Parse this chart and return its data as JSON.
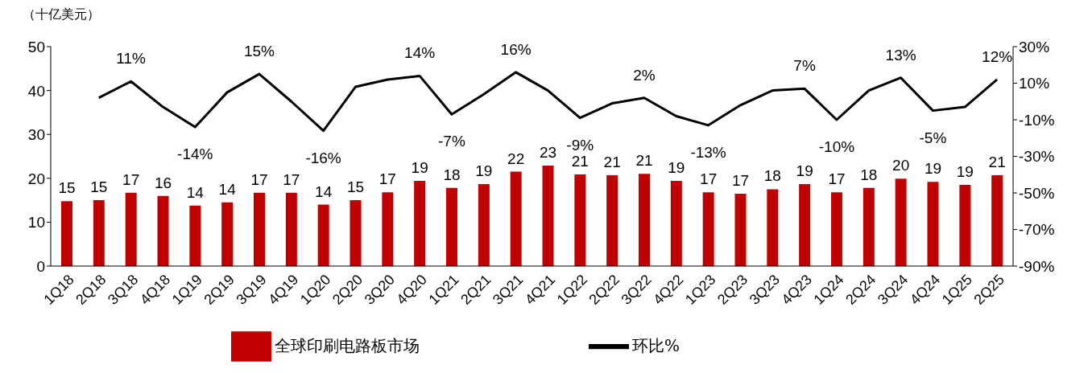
{
  "chart_data": {
    "type": "bar",
    "ylabel": "（十亿美元）",
    "categories": [
      "1Q18",
      "2Q18",
      "3Q18",
      "4Q18",
      "1Q19",
      "2Q19",
      "3Q19",
      "4Q19",
      "1Q20",
      "2Q20",
      "3Q20",
      "4Q20",
      "1Q21",
      "2Q21",
      "3Q21",
      "4Q21",
      "1Q22",
      "2Q22",
      "3Q22",
      "4Q22",
      "1Q23",
      "2Q23",
      "3Q23",
      "4Q23",
      "1Q24",
      "2Q24",
      "3Q24",
      "4Q24",
      "1Q25",
      "2Q25"
    ],
    "series": [
      {
        "name": "全球印刷电路板市场",
        "color": "#c00000",
        "values": [
          14.8,
          15.0,
          16.7,
          16.0,
          13.8,
          14.5,
          16.7,
          16.7,
          14.0,
          15.0,
          16.8,
          19.4,
          17.8,
          18.7,
          21.5,
          22.9,
          20.9,
          20.7,
          21.0,
          19.4,
          16.8,
          16.5,
          17.5,
          18.7,
          16.8,
          17.8,
          19.9,
          19.2,
          18.5,
          20.7
        ],
        "value_labels": [
          "15",
          "15",
          "17",
          "16",
          "14",
          "14",
          "17",
          "17",
          "14",
          "15",
          "17",
          "19",
          "18",
          "19",
          "22",
          "23",
          "21",
          "21",
          "21",
          "19",
          "17",
          "17",
          "18",
          "19",
          "17",
          "18",
          "20",
          "19",
          "19",
          "21"
        ]
      },
      {
        "type": "line",
        "axis": "y2",
        "name": "环比%",
        "color": "#000000",
        "values": [
          null,
          2,
          11,
          -3,
          -14,
          5,
          15,
          0,
          -16,
          8,
          12,
          14,
          -7,
          4,
          16,
          6,
          -9,
          -1,
          2,
          -8,
          -13,
          -2,
          6,
          7,
          -10,
          6,
          13,
          -5,
          -3,
          12
        ],
        "value_labels": [
          null,
          null,
          "11%",
          null,
          "-14%",
          null,
          "15%",
          null,
          "-16%",
          null,
          null,
          "14%",
          "-7%",
          null,
          "16%",
          null,
          "-9%",
          null,
          "2%",
          null,
          "-13%",
          null,
          null,
          "7%",
          "-10%",
          null,
          "13%",
          "-5%",
          null,
          "12%"
        ]
      }
    ],
    "ylim": [
      0,
      50
    ],
    "yticks": [
      0,
      10,
      20,
      30,
      40,
      50
    ],
    "y2lim": [
      -90,
      30
    ],
    "y2ticks": [
      {
        "value": -90,
        "label": "-90%"
      },
      {
        "value": -70,
        "label": "-70%"
      },
      {
        "value": -50,
        "label": "-50%"
      },
      {
        "value": -30,
        "label": "-30%"
      },
      {
        "value": -10,
        "label": "-10%"
      },
      {
        "value": 10,
        "label": "10%"
      },
      {
        "value": 30,
        "label": "30%"
      }
    ],
    "grid": false,
    "legend": "bottom"
  }
}
